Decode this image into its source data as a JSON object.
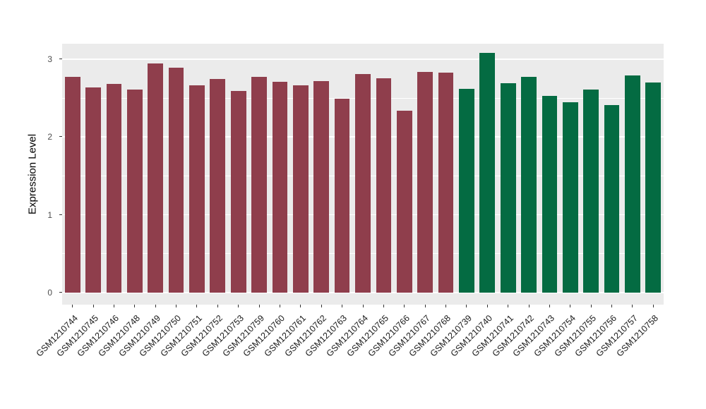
{
  "chart_data": {
    "type": "bar",
    "title": "",
    "xlabel": "",
    "ylabel": "Expression Level",
    "ylim": [
      0,
      3.2
    ],
    "yticks": [
      0,
      1,
      2,
      3
    ],
    "yticks_minor": [
      0.5,
      1.5,
      2.5
    ],
    "grid": true,
    "legend": "none",
    "panel_bg": "#EBEBEB",
    "grid_color": "#FFFFFF",
    "categories": [
      "GSM1210744",
      "GSM1210745",
      "GSM1210746",
      "GSM1210748",
      "GSM1210749",
      "GSM1210750",
      "GSM1210751",
      "GSM1210752",
      "GSM1210753",
      "GSM1210759",
      "GSM1210760",
      "GSM1210761",
      "GSM1210762",
      "GSM1210763",
      "GSM1210764",
      "GSM1210765",
      "GSM1210766",
      "GSM1210767",
      "GSM1210768",
      "GSM1210739",
      "GSM1210740",
      "GSM1210741",
      "GSM1210742",
      "GSM1210743",
      "GSM1210754",
      "GSM1210755",
      "GSM1210756",
      "GSM1210757",
      "GSM1210758"
    ],
    "values": [
      2.77,
      2.64,
      2.68,
      2.61,
      2.95,
      2.89,
      2.67,
      2.75,
      2.59,
      2.77,
      2.71,
      2.67,
      2.72,
      2.49,
      2.81,
      2.76,
      2.34,
      2.84,
      2.83,
      2.62,
      3.08,
      2.69,
      2.77,
      2.53,
      2.45,
      2.61,
      2.41,
      2.79,
      2.7
    ],
    "groups": [
      "group1",
      "group1",
      "group1",
      "group1",
      "group1",
      "group1",
      "group1",
      "group1",
      "group1",
      "group1",
      "group1",
      "group1",
      "group1",
      "group1",
      "group1",
      "group1",
      "group1",
      "group1",
      "group1",
      "group2",
      "group2",
      "group2",
      "group2",
      "group2",
      "group2",
      "group2",
      "group2",
      "group2",
      "group2"
    ],
    "group_colors": {
      "group1": "#8F3E4C",
      "group2": "#046B42"
    }
  }
}
